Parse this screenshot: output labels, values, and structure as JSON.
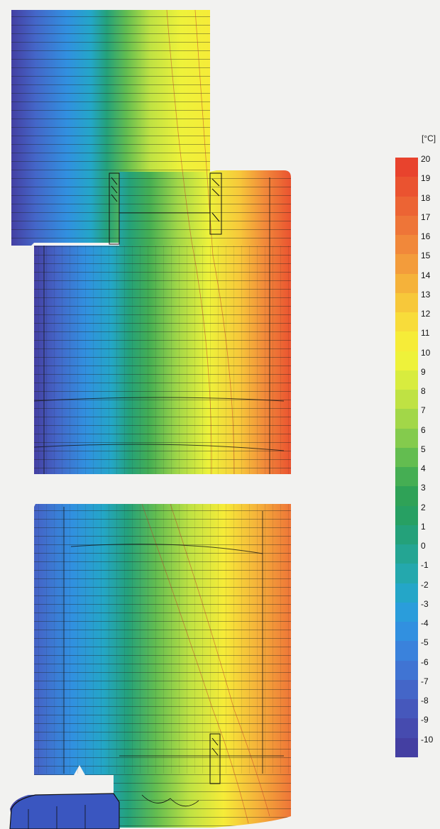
{
  "legend": {
    "unit": "[°C]",
    "levels": [
      {
        "label": "20",
        "color": "#e8432d"
      },
      {
        "label": "19",
        "color": "#ea5330"
      },
      {
        "label": "18",
        "color": "#ec6434"
      },
      {
        "label": "17",
        "color": "#ee7538"
      },
      {
        "label": "16",
        "color": "#f1883a"
      },
      {
        "label": "15",
        "color": "#f39c3b"
      },
      {
        "label": "14",
        "color": "#f5b23a"
      },
      {
        "label": "13",
        "color": "#f7c83a"
      },
      {
        "label": "12",
        "color": "#f8dc3a"
      },
      {
        "label": "11",
        "color": "#f6ec38"
      },
      {
        "label": "10",
        "color": "#eef23a"
      },
      {
        "label": "9",
        "color": "#d8ec3e"
      },
      {
        "label": "8",
        "color": "#bfe243"
      },
      {
        "label": "7",
        "color": "#a2d748"
      },
      {
        "label": "6",
        "color": "#84cb4d"
      },
      {
        "label": "5",
        "color": "#63bd50"
      },
      {
        "label": "4",
        "color": "#45ae53"
      },
      {
        "label": "3",
        "color": "#2fa257"
      },
      {
        "label": "2",
        "color": "#27a063"
      },
      {
        "label": "1",
        "color": "#24a17a"
      },
      {
        "label": "0",
        "color": "#24a593"
      },
      {
        "label": "-1",
        "color": "#24a8ad"
      },
      {
        "label": "-2",
        "color": "#24a6c8"
      },
      {
        "label": "-3",
        "color": "#2a9ddb"
      },
      {
        "label": "-4",
        "color": "#3190e0"
      },
      {
        "label": "-5",
        "color": "#3a82dc"
      },
      {
        "label": "-6",
        "color": "#4074d3"
      },
      {
        "label": "-7",
        "color": "#4466c8"
      },
      {
        "label": "-8",
        "color": "#4658bc"
      },
      {
        "label": "-9",
        "color": "#464baf"
      },
      {
        "label": "-10",
        "color": "#443fa2"
      }
    ]
  }
}
